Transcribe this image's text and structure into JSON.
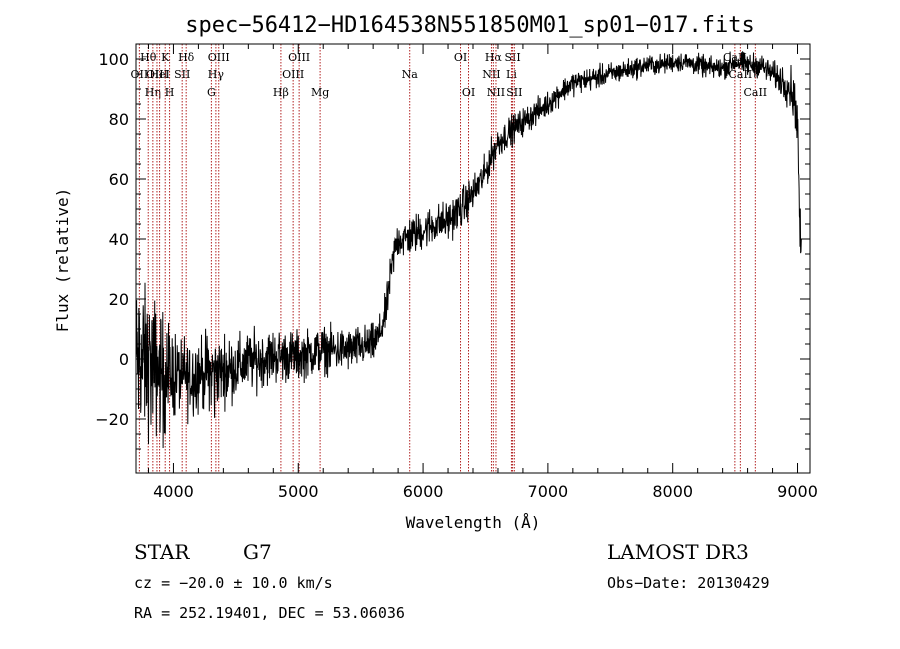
{
  "chart_data": {
    "type": "line",
    "title": "spec−56412−HD164538N551850M01_sp01−017.fits",
    "xlabel": "Wavelength (Å)",
    "ylabel": "Flux (relative)",
    "xlim": [
      3700,
      9100
    ],
    "ylim": [
      -38,
      105
    ],
    "xticks": [
      {
        "v": 4000,
        "label": "4000"
      },
      {
        "v": 5000,
        "label": "5000"
      },
      {
        "v": 6000,
        "label": "6000"
      },
      {
        "v": 7000,
        "label": "7000"
      },
      {
        "v": 8000,
        "label": "8000"
      },
      {
        "v": 9000,
        "label": "9000"
      }
    ],
    "yticks": [
      {
        "v": -20,
        "label": "−20"
      },
      {
        "v": 0,
        "label": "0"
      },
      {
        "v": 20,
        "label": "20"
      },
      {
        "v": 40,
        "label": "40"
      },
      {
        "v": 60,
        "label": "60"
      },
      {
        "v": 80,
        "label": "80"
      },
      {
        "v": 100,
        "label": "100"
      }
    ],
    "series": [
      {
        "name": "flux",
        "noise_amplitude": [
          [
            3700,
            16
          ],
          [
            3850,
            14
          ],
          [
            4000,
            9
          ],
          [
            4300,
            7
          ],
          [
            4600,
            6
          ],
          [
            5000,
            5
          ],
          [
            5600,
            4
          ],
          [
            5800,
            4
          ],
          [
            6300,
            4
          ],
          [
            6700,
            3
          ],
          [
            7000,
            2.5
          ],
          [
            8000,
            2
          ],
          [
            8800,
            2.5
          ],
          [
            9000,
            5
          ]
        ],
        "x": [
          3700,
          3800,
          3900,
          4000,
          4100,
          4200,
          4300,
          4400,
          4500,
          4600,
          4700,
          4800,
          4900,
          5000,
          5100,
          5200,
          5300,
          5400,
          5500,
          5600,
          5650,
          5700,
          5730,
          5760,
          5780,
          5800,
          5850,
          5900,
          6000,
          6100,
          6200,
          6300,
          6400,
          6500,
          6550,
          6600,
          6700,
          6800,
          6900,
          7000,
          7100,
          7200,
          7300,
          7400,
          7500,
          7600,
          7700,
          7800,
          7900,
          8000,
          8100,
          8200,
          8300,
          8400,
          8500,
          8600,
          8700,
          8800,
          8900,
          8950,
          8980,
          9000,
          9020
        ],
        "y": [
          0,
          -2,
          -4,
          -5,
          -6,
          -5,
          -4,
          -4,
          -3,
          -1,
          0,
          1,
          1,
          1,
          2,
          3,
          3,
          3,
          4,
          5,
          8,
          15,
          25,
          33,
          38,
          40,
          40,
          41,
          43,
          45,
          46,
          50,
          55,
          62,
          68,
          72,
          76,
          79,
          82,
          85,
          89,
          92,
          93,
          94,
          95,
          96,
          97,
          98,
          98,
          99,
          99,
          98,
          97,
          97,
          99,
          98,
          98,
          95,
          92,
          90,
          85,
          80,
          40
        ]
      }
    ],
    "lines": [
      {
        "wl": 3727,
        "label": "OII",
        "row": 2
      },
      {
        "wl": 3798,
        "label": "Hθ",
        "row": 1
      },
      {
        "wl": 3835,
        "label": "Hη",
        "row": 3
      },
      {
        "wl": 3868,
        "label": "OIII",
        "row": 2
      },
      {
        "wl": 3889,
        "label": "HeI",
        "row": 2
      },
      {
        "wl": 3934,
        "label": "K",
        "row": 1
      },
      {
        "wl": 3969,
        "label": "H",
        "row": 3
      },
      {
        "wl": 4070,
        "label": "SII",
        "row": 2
      },
      {
        "wl": 4102,
        "label": "Hδ",
        "row": 1
      },
      {
        "wl": 4304,
        "label": "G",
        "row": 3
      },
      {
        "wl": 4340,
        "label": "Hγ",
        "row": 2
      },
      {
        "wl": 4363,
        "label": "OIII",
        "row": 1
      },
      {
        "wl": 4861,
        "label": "Hβ",
        "row": 3
      },
      {
        "wl": 4959,
        "label": "OIII",
        "row": 2
      },
      {
        "wl": 5007,
        "label": "OIII",
        "row": 1
      },
      {
        "wl": 5175,
        "label": "Mg",
        "row": 3
      },
      {
        "wl": 5893,
        "label": "Na",
        "row": 2
      },
      {
        "wl": 6300,
        "label": "OI",
        "row": 1
      },
      {
        "wl": 6364,
        "label": "OI",
        "row": 3
      },
      {
        "wl": 6548,
        "label": "NII",
        "row": 2
      },
      {
        "wl": 6563,
        "label": "Hα",
        "row": 1
      },
      {
        "wl": 6584,
        "label": "NII",
        "row": 3
      },
      {
        "wl": 6708,
        "label": "Li",
        "row": 2
      },
      {
        "wl": 6717,
        "label": "SII",
        "row": 1
      },
      {
        "wl": 6731,
        "label": "SII",
        "row": 3
      },
      {
        "wl": 8498,
        "label": "CaII",
        "row": 1
      },
      {
        "wl": 8542,
        "label": "CaII",
        "row": 2
      },
      {
        "wl": 8662,
        "label": "CaII",
        "row": 3
      }
    ],
    "colors": {
      "line": "#b22222",
      "flux": "#000000"
    }
  },
  "info": {
    "class": "STAR",
    "subclass": "G7",
    "survey": "LAMOST DR3",
    "cz": "cz = −20.0 ± 10.0 km/s",
    "obsdate": "Obs−Date: 20130429",
    "radec": "RA = 252.19401, DEC =  53.06036"
  }
}
